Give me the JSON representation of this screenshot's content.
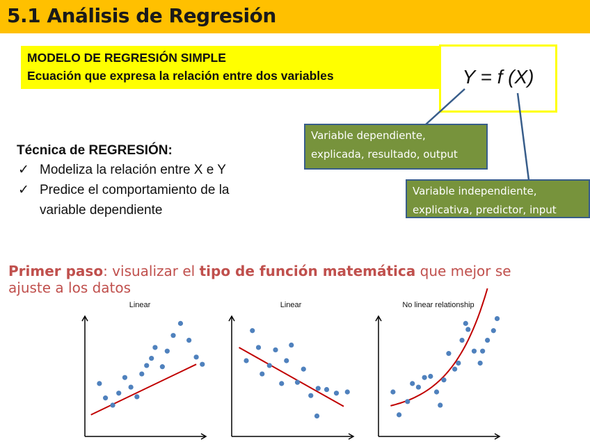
{
  "header": {
    "title": "5.1 Análisis de Regresión"
  },
  "model_box": {
    "line1": "MODELO DE REGRESIÓN SIMPLE",
    "line2": "Ecuación que expresa la relación entre dos variables"
  },
  "equation": "Y = f (X)",
  "callouts": {
    "dependent_line1": "Variable dependiente,",
    "dependent_line2": "explicada, resultado, output",
    "independent_line1": "Variable independiente,",
    "independent_line2": "explicativa, predictor, input"
  },
  "technique": {
    "title": "Técnica de REGRESIÓN:",
    "check": "✓",
    "item1": "Modeliza la relación entre X e Y",
    "item2_line1": "Predice el comportamiento de la",
    "item2_line2": "variable dependiente"
  },
  "first_step": {
    "part1": "Primer paso",
    "part2": ": visualizar el ",
    "part3": "tipo de función matemática",
    "part4": " que mejor se",
    "part5": "ajuste a los datos"
  },
  "colors": {
    "title_bar": "#ffc000",
    "box": "#ffff00",
    "callout": "#77933c",
    "accent_text": "#c0504d",
    "points": "#4f81bd",
    "fit": "#c00000"
  },
  "chart_data": [
    {
      "type": "scatter",
      "title": "Linear",
      "xlabel": "",
      "ylabel": "",
      "points": [
        [
          0.12,
          0.44
        ],
        [
          0.17,
          0.32
        ],
        [
          0.23,
          0.26
        ],
        [
          0.28,
          0.36
        ],
        [
          0.33,
          0.49
        ],
        [
          0.38,
          0.41
        ],
        [
          0.43,
          0.33
        ],
        [
          0.47,
          0.52
        ],
        [
          0.51,
          0.59
        ],
        [
          0.55,
          0.65
        ],
        [
          0.58,
          0.74
        ],
        [
          0.64,
          0.58
        ],
        [
          0.68,
          0.71
        ],
        [
          0.73,
          0.84
        ],
        [
          0.79,
          0.94
        ],
        [
          0.86,
          0.8
        ],
        [
          0.92,
          0.66
        ],
        [
          0.97,
          0.6
        ]
      ],
      "trend": "linear"
    },
    {
      "type": "scatter",
      "title": "Linear",
      "xlabel": "",
      "ylabel": "",
      "points": [
        [
          0.12,
          0.63
        ],
        [
          0.17,
          0.88
        ],
        [
          0.22,
          0.74
        ],
        [
          0.25,
          0.52
        ],
        [
          0.31,
          0.59
        ],
        [
          0.36,
          0.72
        ],
        [
          0.41,
          0.44
        ],
        [
          0.45,
          0.63
        ],
        [
          0.49,
          0.76
        ],
        [
          0.54,
          0.45
        ],
        [
          0.59,
          0.56
        ],
        [
          0.65,
          0.34
        ],
        [
          0.7,
          0.17
        ],
        [
          0.78,
          0.39
        ],
        [
          0.86,
          0.36
        ],
        [
          0.95,
          0.37
        ],
        [
          0.71,
          0.4
        ]
      ],
      "trend": "linear-decreasing"
    },
    {
      "type": "scatter",
      "title": "No linear relationship",
      "xlabel": "",
      "ylabel": "",
      "points": [
        [
          0.12,
          0.37
        ],
        [
          0.17,
          0.18
        ],
        [
          0.24,
          0.29
        ],
        [
          0.28,
          0.44
        ],
        [
          0.33,
          0.41
        ],
        [
          0.38,
          0.49
        ],
        [
          0.43,
          0.5
        ],
        [
          0.48,
          0.37
        ],
        [
          0.51,
          0.26
        ],
        [
          0.54,
          0.47
        ],
        [
          0.58,
          0.69
        ],
        [
          0.63,
          0.56
        ],
        [
          0.66,
          0.61
        ],
        [
          0.69,
          0.8
        ],
        [
          0.74,
          0.89
        ],
        [
          0.79,
          0.71
        ],
        [
          0.84,
          0.61
        ],
        [
          0.86,
          0.71
        ],
        [
          0.9,
          0.8
        ],
        [
          0.95,
          0.88
        ],
        [
          0.98,
          0.98
        ],
        [
          0.72,
          0.94
        ]
      ],
      "trend": "exponential"
    }
  ]
}
